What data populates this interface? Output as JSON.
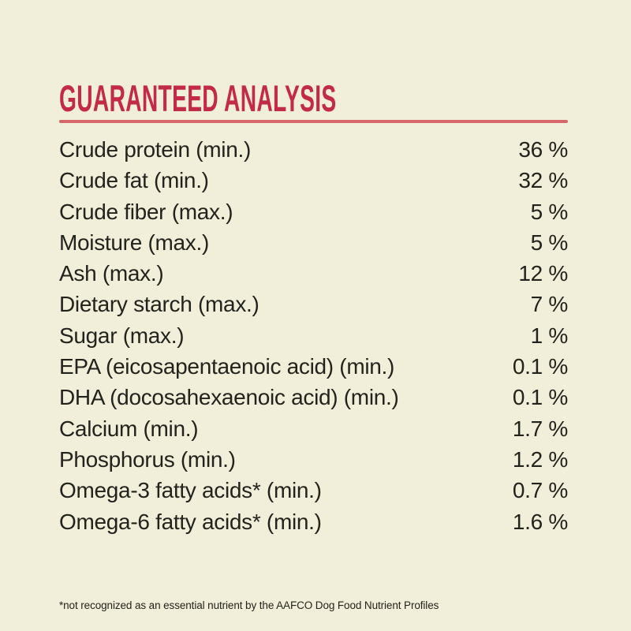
{
  "label": {
    "title": "GUARANTEED ANALYSIS",
    "footnote": "*not recognized as an essential nutrient by the AAFCO Dog Food Nutrient Profiles",
    "colors": {
      "background": "#f1eeda",
      "accent_red": "#c22a45",
      "rule_red": "#d4666c",
      "text": "#23231d"
    },
    "rows": [
      {
        "name": "Crude protein (min.)",
        "value": "36 %"
      },
      {
        "name": "Crude fat (min.)",
        "value": "32 %"
      },
      {
        "name": "Crude fiber (max.)",
        "value": "5 %"
      },
      {
        "name": "Moisture (max.)",
        "value": "5 %"
      },
      {
        "name": "Ash (max.)",
        "value": "12 %"
      },
      {
        "name": "Dietary starch (max.)",
        "value": "7 %"
      },
      {
        "name": "Sugar (max.)",
        "value": "1 %"
      },
      {
        "name": "EPA (eicosapentaenoic acid) (min.)",
        "value": "0.1 %"
      },
      {
        "name": "DHA (docosahexaenoic acid) (min.)",
        "value": "0.1 %"
      },
      {
        "name": "Calcium (min.)",
        "value": "1.7 %"
      },
      {
        "name": "Phosphorus (min.)",
        "value": "1.2 %"
      },
      {
        "name": "Omega-3 fatty acids* (min.)",
        "value": "0.7 %"
      },
      {
        "name": "Omega-6 fatty acids* (min.)",
        "value": "1.6 %"
      }
    ]
  }
}
